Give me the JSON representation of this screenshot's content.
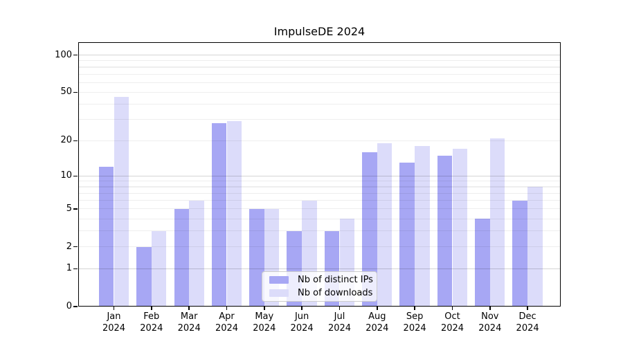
{
  "chart_data": {
    "type": "bar",
    "title": "ImpulseDE 2024",
    "categories": [
      {
        "month": "Jan",
        "year": "2024"
      },
      {
        "month": "Feb",
        "year": "2024"
      },
      {
        "month": "Mar",
        "year": "2024"
      },
      {
        "month": "Apr",
        "year": "2024"
      },
      {
        "month": "May",
        "year": "2024"
      },
      {
        "month": "Jun",
        "year": "2024"
      },
      {
        "month": "Jul",
        "year": "2024"
      },
      {
        "month": "Aug",
        "year": "2024"
      },
      {
        "month": "Sep",
        "year": "2024"
      },
      {
        "month": "Oct",
        "year": "2024"
      },
      {
        "month": "Nov",
        "year": "2024"
      },
      {
        "month": "Dec",
        "year": "2024"
      }
    ],
    "series": [
      {
        "name": "Nb of distinct IPs",
        "color": "#a7a7f4",
        "values": [
          12,
          2,
          5,
          28,
          5,
          3,
          3,
          16,
          13,
          15,
          4,
          6
        ]
      },
      {
        "name": "Nb of downloads",
        "color": "#dcdcfa",
        "values": [
          46,
          3,
          6,
          29,
          5,
          6,
          4,
          19,
          18,
          17,
          21,
          8
        ]
      }
    ],
    "xlabel": "",
    "ylabel": "",
    "y_scale": "log1p",
    "ylim": [
      0,
      127
    ],
    "y_ticks": [
      0,
      1,
      2,
      5,
      10,
      20,
      50,
      100
    ],
    "grid": {
      "minor_values": [
        2,
        3,
        4,
        5,
        6,
        7,
        8,
        9,
        20,
        30,
        40,
        50,
        60,
        70,
        80,
        90
      ],
      "major_values": [
        1,
        10,
        100
      ],
      "minor_color": "rgba(0,0,0,0.065)",
      "major_color": "rgba(0,0,0,0.17)"
    },
    "legend_position": "lower center",
    "colors": {
      "background": "#ffffff",
      "spine": "#000000",
      "text": "#000000",
      "legend_border": "#cccccc",
      "legend_background": "rgba(255,255,255,0.8)"
    }
  }
}
